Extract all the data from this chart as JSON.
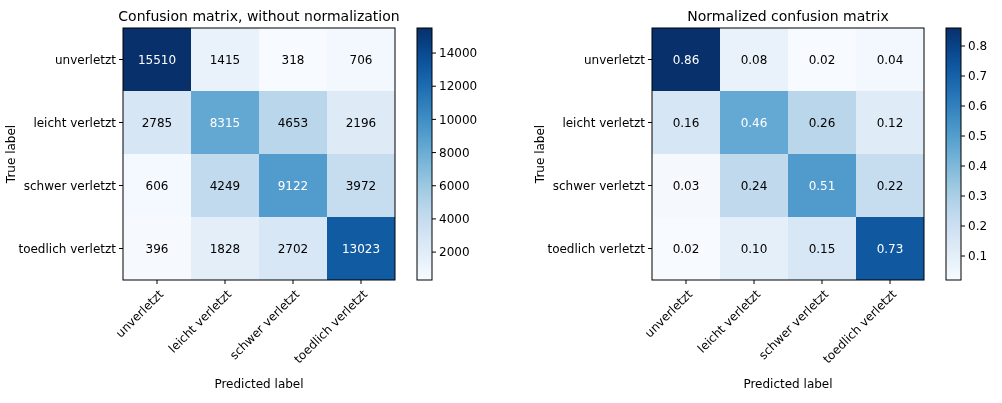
{
  "chart_data": [
    {
      "type": "heatmap",
      "title": "Confusion matrix, without normalization",
      "xlabel": "Predicted label",
      "ylabel": "True label",
      "categories": [
        "unverletzt",
        "leicht verletzt",
        "schwer verletzt",
        "toedlich verletzt"
      ],
      "y_categories": [
        "unverletzt",
        "leicht verletzt",
        "schwer verletzt",
        "toedlich verletzt"
      ],
      "cells": [
        [
          15510,
          1415,
          318,
          706
        ],
        [
          2785,
          8315,
          4653,
          2196
        ],
        [
          606,
          4249,
          9122,
          3972
        ],
        [
          396,
          1828,
          2702,
          13023
        ]
      ],
      "data_labels": true,
      "clim": [
        318,
        15510
      ],
      "cticks": [
        2000,
        4000,
        6000,
        8000,
        10000,
        12000,
        14000
      ]
    },
    {
      "type": "heatmap",
      "title": "Normalized confusion matrix",
      "xlabel": "Predicted label",
      "ylabel": "True label",
      "categories": [
        "unverletzt",
        "leicht verletzt",
        "schwer verletzt",
        "toedlich verletzt"
      ],
      "y_categories": [
        "unverletzt",
        "leicht verletzt",
        "schwer verletzt",
        "toedlich verletzt"
      ],
      "cells": [
        [
          0.86,
          0.08,
          0.02,
          0.04
        ],
        [
          0.16,
          0.46,
          0.26,
          0.12
        ],
        [
          0.03,
          0.24,
          0.51,
          0.22
        ],
        [
          0.02,
          0.1,
          0.15,
          0.73
        ]
      ],
      "cell_labels": [
        [
          "0.86",
          "0.08",
          "0.02",
          "0.04"
        ],
        [
          "0.16",
          "0.46",
          "0.26",
          "0.12"
        ],
        [
          "0.03",
          "0.24",
          "0.51",
          "0.22"
        ],
        [
          "0.02",
          "0.10",
          "0.15",
          "0.73"
        ]
      ],
      "clim": [
        0.02,
        0.86
      ],
      "cticks": [
        0.1,
        0.2,
        0.3,
        0.4,
        0.5,
        0.6,
        0.7,
        0.8
      ]
    }
  ]
}
